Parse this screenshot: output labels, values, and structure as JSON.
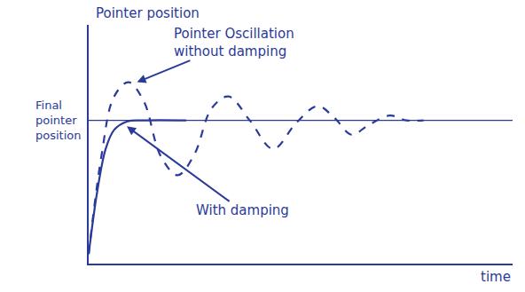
{
  "chart_data": {
    "type": "line",
    "x_label": "time",
    "y_label": "Pointer position",
    "xlim": [
      0,
      10
    ],
    "ylim": [
      0,
      10
    ],
    "tick_labels": false,
    "grid": false,
    "final_position": 6,
    "final_label": "Final pointer position",
    "series": [
      {
        "name": "Pointer Oscillation without damping",
        "color": "#2a3a9a",
        "line_style": "dashed",
        "x": [
          0,
          0.3,
          0.6,
          0.94,
          1.3,
          1.7,
          2.1,
          2.5,
          2.9,
          3.3,
          3.8,
          4.35,
          4.9,
          5.4,
          5.8,
          6.2,
          6.6,
          7.1,
          7.5,
          7.9
        ],
        "values": [
          0.4,
          4.5,
          7.0,
          7.6,
          6.8,
          4.5,
          3.7,
          4.6,
          6.5,
          7.0,
          6.0,
          4.8,
          5.9,
          6.6,
          6.1,
          5.4,
          5.8,
          6.2,
          6.0,
          6.0
        ]
      },
      {
        "name": "With damping",
        "color": "#2a3a9a",
        "line_style": "solid",
        "x": [
          0,
          0.2,
          0.4,
          0.6,
          0.9,
          1.3,
          2.3
        ],
        "values": [
          0.4,
          3.0,
          4.8,
          5.6,
          5.95,
          6.0,
          6.0
        ]
      }
    ]
  }
}
